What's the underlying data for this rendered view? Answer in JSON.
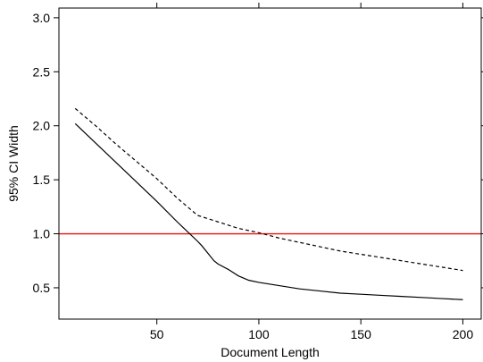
{
  "chart_data": {
    "type": "line",
    "title": "",
    "xlabel": "Document Length",
    "ylabel": "95% CI Width",
    "xlim": [
      2,
      209
    ],
    "ylim": [
      0.21,
      3.09
    ],
    "xticks": [
      50,
      100,
      150,
      200
    ],
    "xtick_labels": [
      "50",
      "100",
      "150",
      "200"
    ],
    "yticks": [
      0.5,
      1.0,
      1.5,
      2.0,
      2.5,
      3.0
    ],
    "ytick_labels": [
      "0.5",
      "1.0",
      "1.5",
      "2.0",
      "2.5",
      "3.0"
    ],
    "grid": false,
    "legend": "none",
    "series": [
      {
        "style": "solid",
        "color": "#000000",
        "x": [
          10,
          20,
          30,
          40,
          50,
          60,
          70,
          72,
          75,
          78,
          80,
          85,
          90,
          95,
          100,
          110,
          120,
          130,
          140,
          150,
          160,
          170,
          180,
          190,
          200
        ],
        "y": [
          2.02,
          1.84,
          1.66,
          1.48,
          1.3,
          1.11,
          0.93,
          0.89,
          0.82,
          0.75,
          0.72,
          0.67,
          0.61,
          0.57,
          0.55,
          0.52,
          0.49,
          0.47,
          0.45,
          0.44,
          0.43,
          0.42,
          0.41,
          0.4,
          0.39
        ]
      },
      {
        "style": "dashed",
        "color": "#000000",
        "x": [
          10,
          20,
          30,
          40,
          50,
          60,
          70,
          80,
          90,
          100,
          110,
          120,
          130,
          140,
          150,
          160,
          170,
          180,
          190,
          200
        ],
        "y": [
          2.16,
          2.0,
          1.83,
          1.67,
          1.51,
          1.33,
          1.17,
          1.11,
          1.05,
          1.01,
          0.96,
          0.92,
          0.88,
          0.84,
          0.81,
          0.78,
          0.75,
          0.72,
          0.69,
          0.66
        ]
      }
    ],
    "reference_lines": [
      {
        "orientation": "horizontal",
        "y": 1.0,
        "color": "#ee1111"
      }
    ]
  }
}
